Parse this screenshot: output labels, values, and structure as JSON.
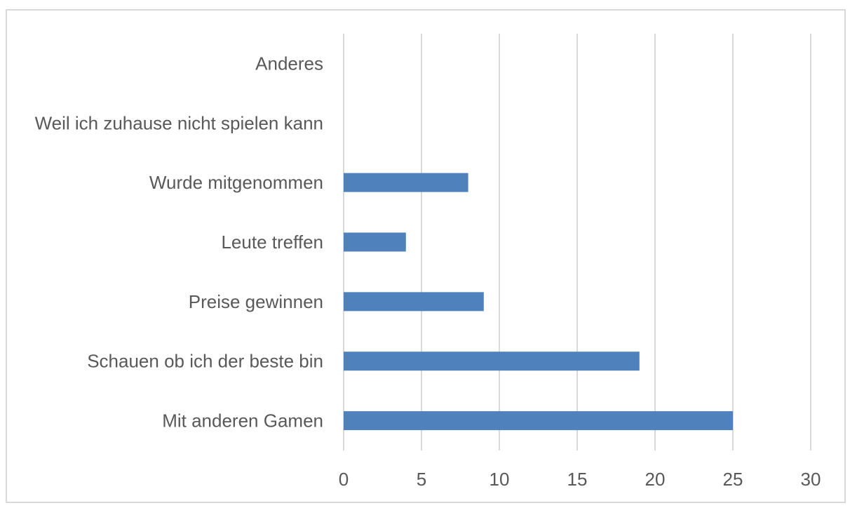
{
  "chart_data": {
    "type": "bar",
    "orientation": "horizontal",
    "title": "",
    "xlabel": "",
    "ylabel": "",
    "categories": [
      "Mit anderen Gamen",
      "Schauen ob ich der beste bin",
      "Preise gewinnen",
      "Leute treffen",
      "Wurde mitgenommen",
      "Weil ich zuhause nicht spielen kann",
      "Anderes"
    ],
    "values": [
      25,
      19,
      9,
      4,
      8,
      0,
      0
    ],
    "xlim": [
      0,
      30
    ],
    "xticks": [
      "0",
      "5",
      "10",
      "15",
      "20",
      "25",
      "30"
    ],
    "grid": true,
    "legend": "none",
    "bar_color": "#4f81bd",
    "grid_color": "#d9d9d9",
    "text_color": "#595959"
  }
}
